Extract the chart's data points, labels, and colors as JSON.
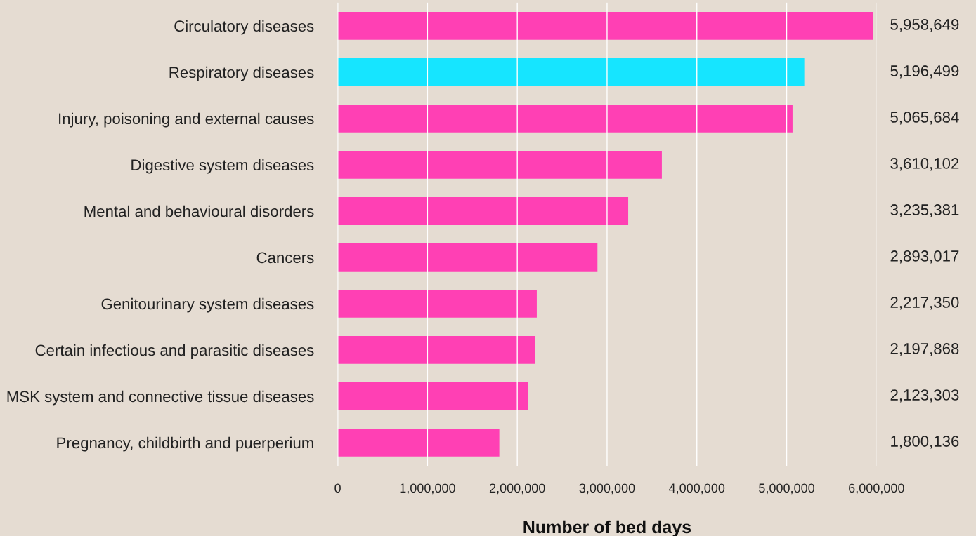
{
  "chart_data": {
    "type": "bar",
    "orientation": "horizontal",
    "xlabel": "Number of bed days",
    "categories": [
      "Circulatory diseases",
      "Respiratory diseases",
      "Injury, poisoning and external causes",
      "Digestive system diseases",
      "Mental and behavioural disorders",
      "Cancers",
      "Genitourinary system diseases",
      "Certain infectious and parasitic diseases",
      "MSK system and connective tissue diseases",
      "Pregnancy, childbirth and puerperium"
    ],
    "values": [
      5958649,
      5196499,
      5065684,
      3610102,
      3235381,
      2893017,
      2217350,
      2197868,
      2123303,
      1800136
    ],
    "colors": [
      "#ff40b4",
      "#16e5ff",
      "#ff40b4",
      "#ff40b4",
      "#ff40b4",
      "#ff40b4",
      "#ff40b4",
      "#ff40b4",
      "#ff40b4",
      "#ff40b4"
    ],
    "value_labels": [
      "5,958,649",
      "5,196,499",
      "5,065,684",
      "3,610,102",
      "3,235,381",
      "2,893,017",
      "2,217,350",
      "2,197,868",
      "2,123,303",
      "1,800,136"
    ],
    "xlim": [
      0,
      6000000
    ],
    "xticks": [
      {
        "value": 0,
        "label": "0"
      },
      {
        "value": 1000000,
        "label": "1,000,000"
      },
      {
        "value": 2000000,
        "label": "2,000,000"
      },
      {
        "value": 3000000,
        "label": "3,000,000"
      },
      {
        "value": 4000000,
        "label": "4,000,000"
      },
      {
        "value": 5000000,
        "label": "5,000,000"
      },
      {
        "value": 6000000,
        "label": "6,000,000"
      }
    ],
    "grid": "x",
    "legend": false
  }
}
